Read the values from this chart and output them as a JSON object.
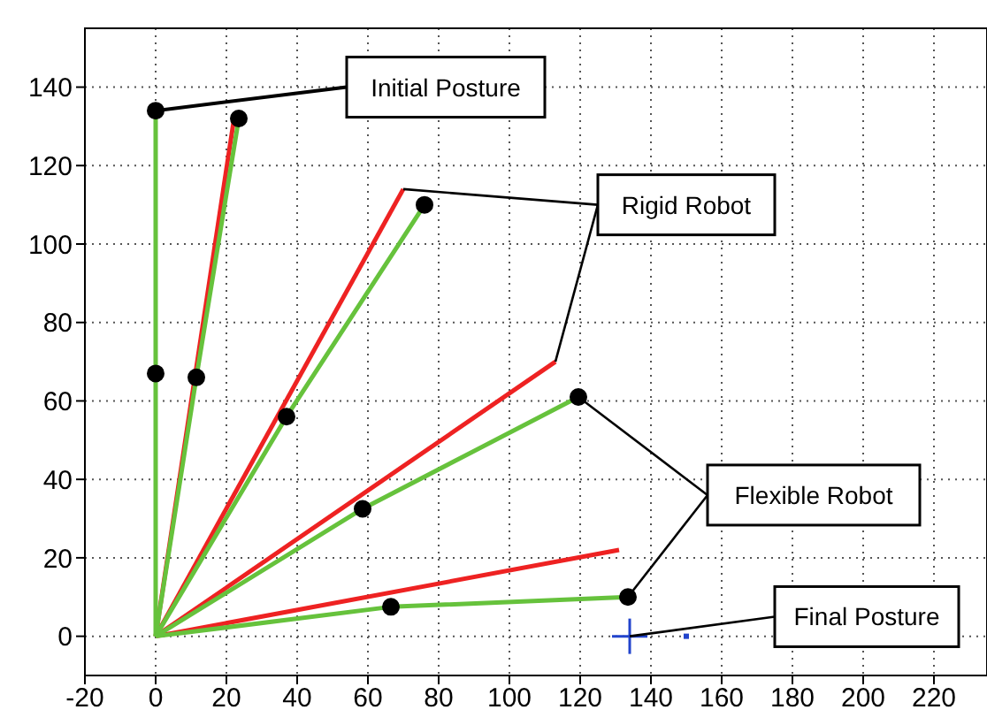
{
  "chart_data": {
    "type": "line",
    "xlim": [
      -20,
      235
    ],
    "ylim": [
      -10,
      155
    ],
    "xticks": [
      -20,
      0,
      20,
      40,
      60,
      80,
      100,
      120,
      140,
      160,
      180,
      200,
      220
    ],
    "yticks": [
      0,
      20,
      40,
      60,
      80,
      100,
      120,
      140
    ],
    "grid": true,
    "legend": false,
    "series": [
      {
        "color": "#ee2222",
        "x": [
          0,
          22
        ],
        "values": [
          0,
          131
        ]
      },
      {
        "color": "#ee2222",
        "x": [
          0,
          70
        ],
        "values": [
          0,
          114
        ]
      },
      {
        "color": "#ee2222",
        "x": [
          0,
          113
        ],
        "values": [
          0,
          70
        ]
      },
      {
        "color": "#ee2222",
        "x": [
          0,
          131
        ],
        "values": [
          0,
          22
        ]
      },
      {
        "color": "#66c23c",
        "x": [
          0,
          0,
          0
        ],
        "values": [
          0,
          67,
          134
        ]
      },
      {
        "color": "#66c23c",
        "x": [
          0,
          11.5,
          23.5
        ],
        "values": [
          0,
          66,
          132
        ]
      },
      {
        "color": "#66c23c",
        "x": [
          0,
          37,
          76
        ],
        "values": [
          0,
          56,
          110
        ]
      },
      {
        "color": "#66c23c",
        "x": [
          0,
          58.5,
          119.5
        ],
        "values": [
          0,
          32.5,
          61
        ]
      },
      {
        "color": "#66c23c",
        "x": [
          0,
          66.5,
          133.5
        ],
        "values": [
          0,
          7.5,
          10
        ]
      },
      {
        "type": "scatter",
        "color": "#000000",
        "marker": "circle",
        "x": [
          0,
          0,
          11.5,
          23.5,
          37,
          76,
          58.5,
          119.5,
          66.5,
          133.5
        ],
        "values": [
          67,
          134,
          66,
          132,
          56,
          110,
          32.5,
          61,
          7.5,
          10
        ]
      },
      {
        "type": "scatter",
        "color": "#2244cc",
        "marker": "cross",
        "x": [
          134
        ],
        "values": [
          0
        ]
      },
      {
        "type": "scatter",
        "color": "#2244cc",
        "marker": "square",
        "x": [
          150
        ],
        "values": [
          0
        ]
      }
    ],
    "annotations": [
      {
        "text": "Initial Posture",
        "x": 0,
        "y": 134
      },
      {
        "text": "Rigid Robot",
        "x": 70,
        "y": 114
      },
      {
        "text": "Flexible Robot",
        "x": 119.5,
        "y": 61
      },
      {
        "text": "Final Posture",
        "x": 134,
        "y": 0
      }
    ]
  }
}
